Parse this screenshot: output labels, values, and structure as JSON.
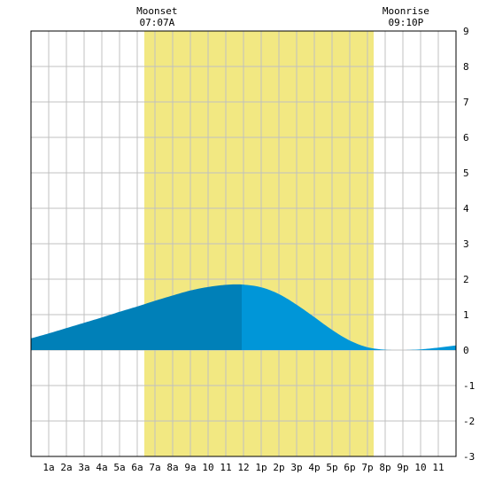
{
  "chart_data": {
    "type": "area",
    "title": "",
    "xlabel": "",
    "ylabel": "",
    "x_range": [
      0,
      24
    ],
    "ylim": [
      -3,
      9
    ],
    "grid": true,
    "y_ticks": [
      -3,
      -2,
      -1,
      0,
      1,
      2,
      3,
      4,
      5,
      6,
      7,
      8,
      9
    ],
    "x_tick_labels": [
      "1a",
      "2a",
      "3a",
      "4a",
      "5a",
      "6a",
      "7a",
      "8a",
      "9a",
      "10",
      "11",
      "12",
      "1p",
      "2p",
      "3p",
      "4p",
      "5p",
      "6p",
      "7p",
      "8p",
      "9p",
      "10",
      "11"
    ],
    "daylight": {
      "start": 6.4,
      "end": 19.35
    },
    "moon_events": [
      {
        "label": "Moonset",
        "time": "07:07A",
        "hour": 7.117
      },
      {
        "label": "Moonrise",
        "time": "09:10P",
        "hour": 21.167
      }
    ],
    "peak": {
      "hour": 11.9,
      "value": 1.85
    },
    "series": [
      {
        "x": [
          0,
          1,
          2,
          3,
          4,
          5,
          6,
          7,
          8,
          9,
          10,
          11,
          11.9,
          13,
          14,
          15,
          16,
          17,
          18,
          19,
          20,
          21,
          22,
          23,
          24
        ],
        "values": [
          0.33,
          0.47,
          0.62,
          0.77,
          0.92,
          1.08,
          1.23,
          1.39,
          1.54,
          1.68,
          1.78,
          1.84,
          1.85,
          1.77,
          1.58,
          1.28,
          0.93,
          0.57,
          0.27,
          0.08,
          0.01,
          0.0,
          0.02,
          0.07,
          0.13
        ]
      }
    ],
    "colors": {
      "daylight": "#f2e882",
      "fill_before_peak": "#0080b8",
      "fill_after_peak": "#0096d8",
      "grid": "#c0c0c0",
      "plot_background": "#ffffff"
    }
  }
}
